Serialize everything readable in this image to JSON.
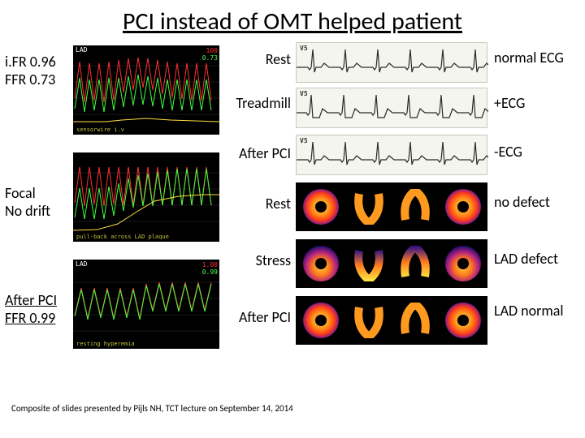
{
  "title": "PCI instead of OMT helped patient",
  "left": {
    "box1_line1": "i.FR 0.96",
    "box1_line2": "FFR 0.73",
    "box2_line1": "Focal",
    "box2_line2": "No drift",
    "box3_line1": "After PCI",
    "box3_line2": "FFR 0.99"
  },
  "wave": {
    "lad": "LAD",
    "red_num": "100",
    "green_num": "0.73",
    "bottom1": "sensorwire i.v",
    "pullback": "pull-back across LAD plaque",
    "pair": "resting     hyperemia",
    "hemo_red": "1.00",
    "hemo_green": "0.99",
    "hemo_lad": "LAD"
  },
  "mid": {
    "rest": "Rest",
    "treadmill": "Treadmill",
    "afterpci": "After PCI",
    "stress": "Stress"
  },
  "right": {
    "r1": "normal ECG",
    "r2": "+ECG",
    "r3": "-ECG",
    "r4": "no defect",
    "r5": "LAD defect",
    "r6": "LAD normal"
  },
  "ecg": {
    "lead1": "V5",
    "lead2": "V5",
    "lead3": "V5",
    "baseline": 30,
    "spikes_normal": [
      20,
      60,
      100,
      140,
      180,
      220
    ],
    "spikes_ischemia": [
      18,
      58,
      98,
      138,
      178,
      218
    ],
    "stroke": "#2a2a2a",
    "bg": "#f5f5ef",
    "grid": "#e4e4d8"
  },
  "perf": {
    "grad_normal": "radial-gradient(circle, #ffe040 0%, #ff8c1a 35%, #ff3a1a 55%, #5a12a8 75%, #0a0a4a 92%)",
    "grad_defect_top": "radial-gradient(circle at 50% 60%, #ffd040 0%, #ff7a1a 30%, #b02080 55%, #20106a 75%, #040420 92%)",
    "horseshoe_normal": "linear-gradient(180deg,#ff9a20,#ffde40,#ff7a20)",
    "horseshoe_defect": "linear-gradient(180deg,#4a1a8a,#ff7a20,#ffde40)"
  },
  "footer": "Composite of slides presented by Pijls NH, TCT lecture on September 14, 2014"
}
